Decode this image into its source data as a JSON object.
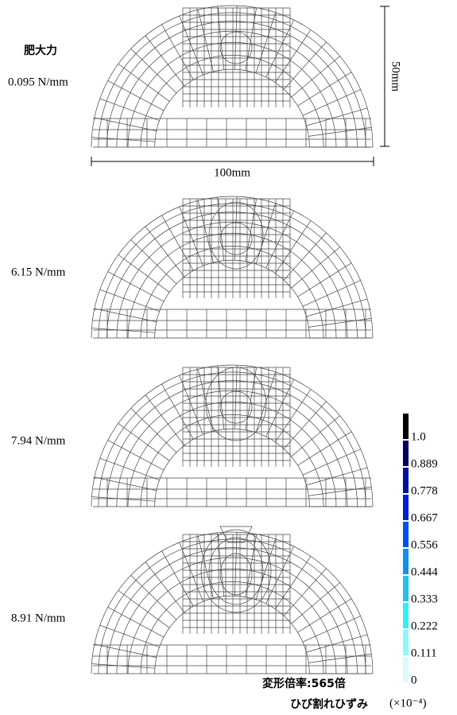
{
  "header": {
    "title": "肥大力"
  },
  "dimensions": {
    "height": "50mm",
    "width": "100mm"
  },
  "panels": [
    {
      "load": "0.095 N/mm"
    },
    {
      "load": "6.15 N/mm"
    },
    {
      "load": "7.94 N/mm"
    },
    {
      "load": "8.91 N/mm"
    }
  ],
  "colorbar": {
    "levels": [
      {
        "label": "1.0",
        "color": "#000000"
      },
      {
        "label": "0.889",
        "color": "#000060"
      },
      {
        "label": "0.778",
        "color": "#0010a0"
      },
      {
        "label": "0.667",
        "color": "#0020d0"
      },
      {
        "label": "0.556",
        "color": "#0050f0"
      },
      {
        "label": "0.444",
        "color": "#1090f0"
      },
      {
        "label": "0.333",
        "color": "#20c0f0"
      },
      {
        "label": "0.222",
        "color": "#30f0f0"
      },
      {
        "label": "0.111",
        "color": "#90f8f8"
      },
      {
        "label": "0",
        "color": "#d8fcfc"
      }
    ],
    "scale_note": "変形倍率:565倍",
    "quantity": "ひび割れひずみ",
    "unit": "(×10⁻⁴)"
  }
}
